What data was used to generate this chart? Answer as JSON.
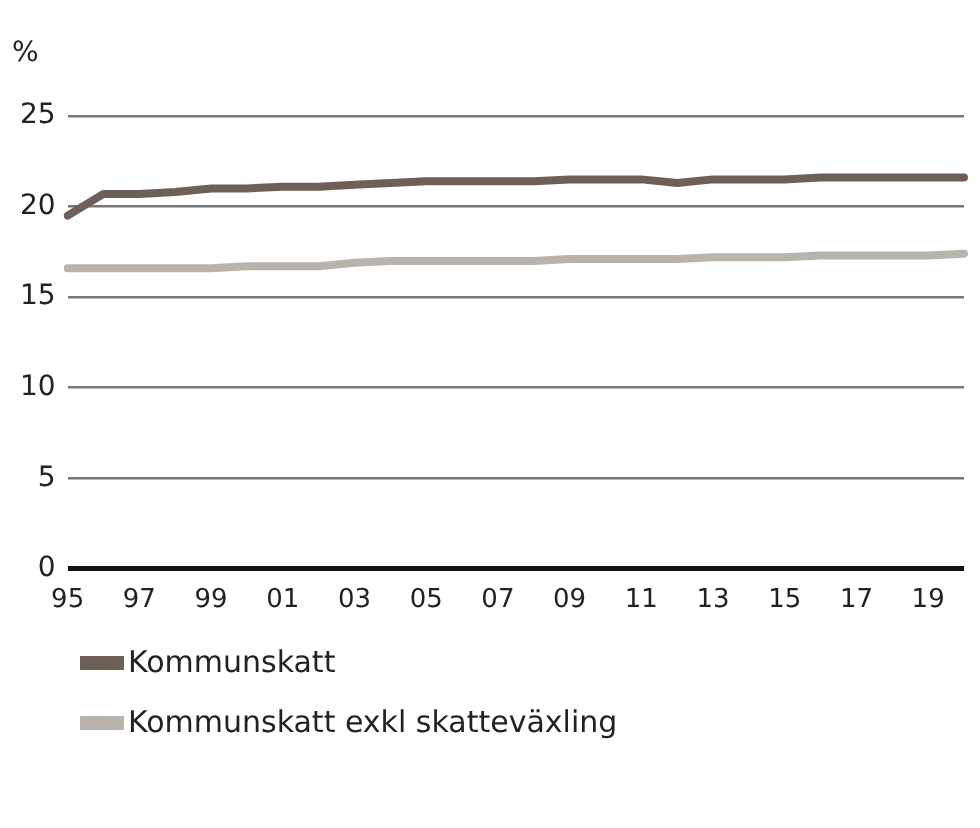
{
  "chart_data": {
    "type": "line",
    "ylabel": "%",
    "categories": [
      "95",
      null,
      "97",
      null,
      "99",
      null,
      "01",
      null,
      "03",
      null,
      "05",
      null,
      "07",
      null,
      "09",
      null,
      "11",
      null,
      "13",
      null,
      "15",
      null,
      "17",
      null,
      "19",
      null
    ],
    "series": [
      {
        "name": "Kommunskatt",
        "color": "#6e5f57",
        "values": [
          19.5,
          20.7,
          20.7,
          20.8,
          21.0,
          21.0,
          21.1,
          21.1,
          21.2,
          21.3,
          21.4,
          21.4,
          21.4,
          21.4,
          21.5,
          21.5,
          21.5,
          21.3,
          21.5,
          21.5,
          21.5,
          21.6,
          21.6,
          21.6,
          21.6,
          21.6
        ]
      },
      {
        "name": "Kommunskatt exkl skatteväxling",
        "color": "#b8b3ad",
        "values": [
          16.6,
          16.6,
          16.6,
          16.6,
          16.6,
          16.7,
          16.7,
          16.7,
          16.9,
          17.0,
          17.0,
          17.0,
          17.0,
          17.0,
          17.1,
          17.1,
          17.1,
          17.1,
          17.2,
          17.2,
          17.2,
          17.3,
          17.3,
          17.3,
          17.3,
          17.4
        ]
      }
    ],
    "ylim": [
      0,
      25
    ],
    "yticks": [
      0,
      5,
      10,
      15,
      20,
      25
    ],
    "grid": "y",
    "legend": "bottom",
    "marker": "none",
    "line_style": "solid"
  }
}
